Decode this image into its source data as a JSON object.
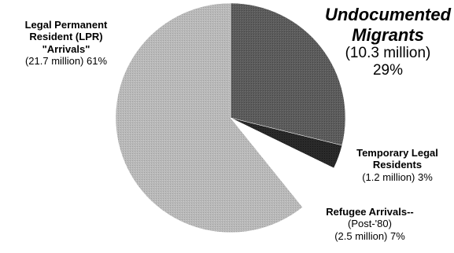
{
  "chart_data": {
    "type": "pie",
    "title": "",
    "start_angle_deg": 0,
    "slices": [
      {
        "name": "Undocumented Migrants",
        "value_millions": 10.3,
        "percent": 29,
        "color": "#5a5a5a",
        "label_lines": [
          "Undocumented",
          "Migrants",
          "(10.3 million)",
          "29%"
        ]
      },
      {
        "name": "Temporary Legal Residents",
        "value_millions": 1.2,
        "percent": 3,
        "color": "#262626",
        "label_lines": [
          "Temporary Legal",
          "Residents",
          "(1.2 million)  3%"
        ]
      },
      {
        "name": "Refugee Arrivals--",
        "value_millions": 2.5,
        "percent": 7,
        "color": "#ffffff",
        "label_lines": [
          "Refugee Arrivals--",
          "(Post-'80)",
          "(2.5 million)  7%"
        ]
      },
      {
        "name": "Legal Permanent Resident (LPR) \"Arrivals\"",
        "value_millions": 21.7,
        "percent": 61,
        "color": "#b4b4b4",
        "label_lines": [
          "Legal Permanent",
          "Resident (LPR)",
          "\"Arrivals\"",
          "(21.7 million)  61%"
        ]
      }
    ]
  }
}
